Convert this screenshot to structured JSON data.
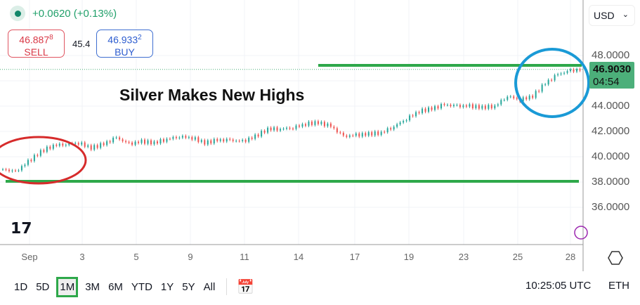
{
  "header": {
    "change": "+0.0620 (+0.13%)",
    "sell_price": "46.887",
    "sell_price_sup": "8",
    "sell_label": "SELL",
    "spread": "45.4",
    "buy_price": "46.933",
    "buy_price_sup": "2",
    "buy_label": "BUY"
  },
  "currency": "USD",
  "annotation": "Silver Makes New Highs",
  "price_tag": {
    "price": "46.9030",
    "countdown": "04:54"
  },
  "colors": {
    "up": "#26a69a",
    "down": "#ef5350",
    "lines": "#2ea84a",
    "red_circle": "#d62b2b",
    "blue_circle": "#1a9ad6"
  },
  "chart_data": {
    "type": "candlestick",
    "y_ticks": [
      "48.0000",
      "44.0000",
      "42.0000",
      "40.0000",
      "38.0000",
      "36.0000"
    ],
    "ylim": [
      35,
      50.4
    ],
    "x_ticks": [
      "Sep",
      "3",
      "5",
      "9",
      "11",
      "14",
      "17",
      "19",
      "23",
      "25",
      "28"
    ],
    "closes": [
      39.0,
      38.8,
      39.6,
      40.4,
      40.9,
      41.0,
      41.1,
      40.7,
      41.0,
      41.5,
      41.0,
      41.2,
      41.1,
      41.4,
      41.6,
      41.5,
      41.1,
      41.3,
      41.3,
      41.2,
      41.6,
      42.2,
      42.2,
      42.3,
      42.6,
      42.7,
      42.4,
      41.6,
      41.7,
      41.8,
      41.9,
      42.4,
      43.0,
      43.6,
      43.8,
      44.1,
      44.0,
      44.0,
      43.9,
      44.0,
      44.8,
      44.5,
      44.8,
      45.8,
      46.5,
      46.8,
      46.9
    ],
    "horizontal_lines": [
      46.75,
      38.5
    ]
  },
  "ranges": [
    "1D",
    "5D",
    "1M",
    "3M",
    "6M",
    "YTD",
    "1Y",
    "5Y",
    "All"
  ],
  "active_range": "1M",
  "clock": "10:25:05 UTC",
  "session": "ETH"
}
